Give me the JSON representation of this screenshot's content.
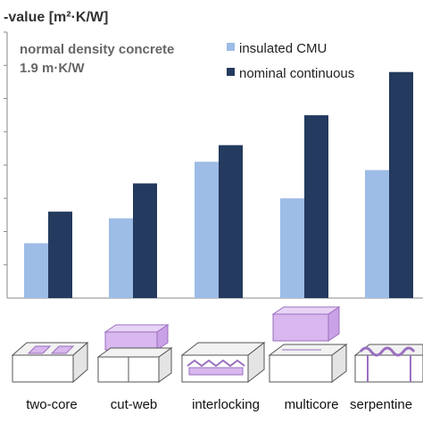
{
  "chart_data": {
    "type": "bar",
    "title": "-value [m²·K/W]",
    "subtitle_line1": "normal density concrete",
    "subtitle_line2": "1.9 m·K/W",
    "categories": [
      "two-core",
      "cut-web",
      "interlocking",
      "multicore",
      "serpentine"
    ],
    "series": [
      {
        "name": "insulated CMU",
        "color": "#9dbce6",
        "values": [
          0.33,
          0.48,
          0.82,
          0.6,
          0.77
        ]
      },
      {
        "name": "nominal continuous",
        "color": "#243a5e",
        "values": [
          0.52,
          0.69,
          0.92,
          1.1,
          1.36
        ]
      }
    ],
    "ylim": [
      0,
      1.6
    ],
    "ytick_step": 0.2,
    "grid": false,
    "legend_position": "top-right"
  },
  "colors": {
    "axis": "#8a8a8a",
    "text": "#333333",
    "subtitle": "#666666",
    "insert_fill": "#d8b8ee",
    "insert_stroke": "#9a6fbf",
    "block_stroke": "#555555"
  },
  "icons": [
    "two-core-block-icon",
    "cut-web-block-icon",
    "interlocking-block-icon",
    "multicore-block-icon",
    "serpentine-block-icon"
  ]
}
